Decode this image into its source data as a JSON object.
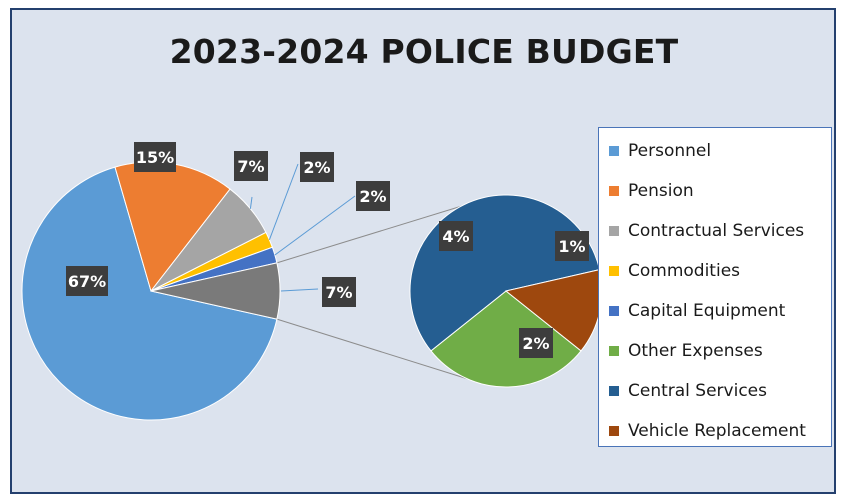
{
  "chart_data": {
    "type": "pie",
    "subtype": "pie-of-pie",
    "title": "2023-2024 POLICE BUDGET",
    "legend_position": "right",
    "slices": [
      {
        "name": "Personnel",
        "value": 67,
        "label": "67%",
        "color": "#5b9bd5",
        "group": "main"
      },
      {
        "name": "Pension",
        "value": 15,
        "label": "15%",
        "color": "#ed7d31",
        "group": "main"
      },
      {
        "name": "Contractual Services",
        "value": 7,
        "label": "7%",
        "color": "#a5a5a5",
        "group": "main"
      },
      {
        "name": "Commodities",
        "value": 2,
        "label": "2%",
        "color": "#ffc000",
        "group": "main"
      },
      {
        "name": "Capital Equipment",
        "value": 2,
        "label": "2%",
        "color": "#4472c4",
        "group": "main"
      },
      {
        "name": "Other Expenses",
        "value": 2,
        "label": "2%",
        "color": "#70ad47",
        "group": "secondary"
      },
      {
        "name": "Central Services",
        "value": 4,
        "label": "4%",
        "color": "#255e91",
        "group": "secondary"
      },
      {
        "name": "Vehicle Replacement",
        "value": 1,
        "label": "1%",
        "color": "#9e480e",
        "group": "secondary"
      }
    ],
    "other_slice": {
      "value": 7,
      "label": "7%",
      "color": "#7a7a7a"
    }
  }
}
